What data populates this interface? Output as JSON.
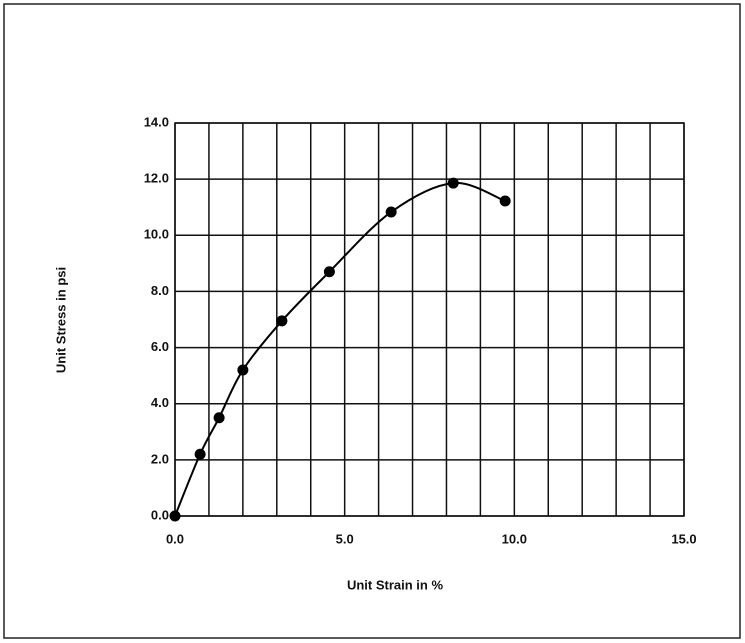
{
  "chart_data": {
    "type": "scatter",
    "line": "smooth",
    "xlabel": "Unit Strain in %",
    "ylabel": "Unit Stress in psi",
    "x": [
      0,
      0.74,
      1.3,
      2.0,
      3.15,
      4.55,
      6.37,
      8.2,
      9.73
    ],
    "values": [
      0,
      2.2,
      3.5,
      5.2,
      6.95,
      8.7,
      10.83,
      11.86,
      11.22
    ],
    "color": "#000000",
    "xlim": [
      0,
      15
    ],
    "ylim": [
      0,
      14
    ],
    "xticks": [
      {
        "value": 0,
        "label": "0.0"
      },
      {
        "value": 5,
        "label": "5.0"
      },
      {
        "value": 10,
        "label": "10.0"
      },
      {
        "value": 15,
        "label": "15.0"
      }
    ],
    "xgrid": [
      0,
      1,
      2,
      3,
      4,
      5,
      6,
      7,
      8,
      9,
      10,
      11,
      12,
      13,
      14,
      15
    ],
    "yticks": [
      {
        "value": 0,
        "label": "0.0"
      },
      {
        "value": 2,
        "label": "2.0"
      },
      {
        "value": 4,
        "label": "4.0"
      },
      {
        "value": 6,
        "label": "6.0"
      },
      {
        "value": 8,
        "label": "8.0"
      },
      {
        "value": 10,
        "label": "10.0"
      },
      {
        "value": 12,
        "label": "12.0"
      },
      {
        "value": 14,
        "label": "14.0"
      }
    ],
    "grid": true
  }
}
